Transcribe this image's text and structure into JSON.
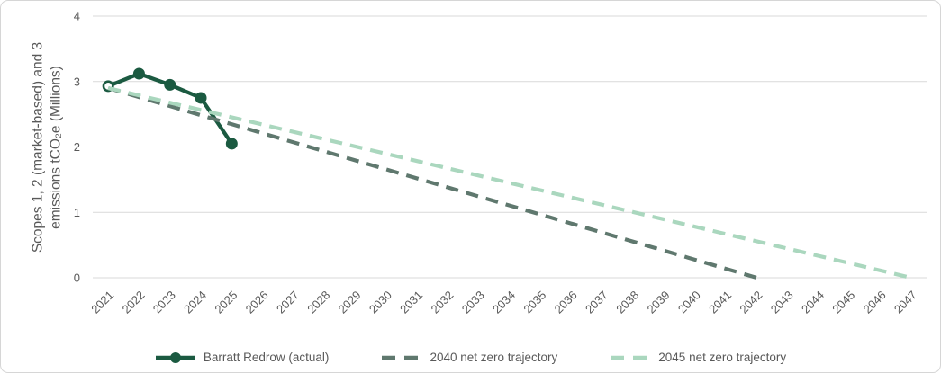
{
  "chart_data": {
    "type": "line",
    "title": "",
    "ylabel_lines": [
      "Scopes 1, 2 (market-based) and 3",
      "emissions tCO₂e (Millions)"
    ],
    "xlabel": "",
    "categories": [
      2021,
      2022,
      2023,
      2024,
      2025,
      2026,
      2027,
      2028,
      2029,
      2030,
      2031,
      2032,
      2033,
      2034,
      2035,
      2036,
      2037,
      2038,
      2039,
      2040,
      2041,
      2042,
      2043,
      2044,
      2045,
      2046,
      2047
    ],
    "yticks": [
      0,
      1,
      2,
      3,
      4
    ],
    "ylim": [
      0,
      4
    ],
    "grid": "horizontal",
    "legend_position": "bottom",
    "colors": {
      "gridline": "#d9d9d9",
      "text": "#595959",
      "background": "#ffffff",
      "border": "#d6d6d6"
    },
    "series": [
      {
        "name": "Barratt Redrow (actual)",
        "color": "#1b5a41",
        "style": "solid",
        "marker": true,
        "first_marker_open": true,
        "x": [
          2021,
          2022,
          2023,
          2024,
          2025
        ],
        "values": [
          2.93,
          3.12,
          2.95,
          2.75,
          2.05
        ]
      },
      {
        "name": "2040 net zero trajectory",
        "color": "#5f786e",
        "style": "dashed",
        "marker": false,
        "x": [
          2021,
          2042
        ],
        "values": [
          2.9,
          0
        ]
      },
      {
        "name": "2045 net zero trajectory",
        "color": "#aad7be",
        "style": "dashed",
        "marker": false,
        "x": [
          2021,
          2047
        ],
        "values": [
          2.9,
          0
        ]
      }
    ]
  }
}
